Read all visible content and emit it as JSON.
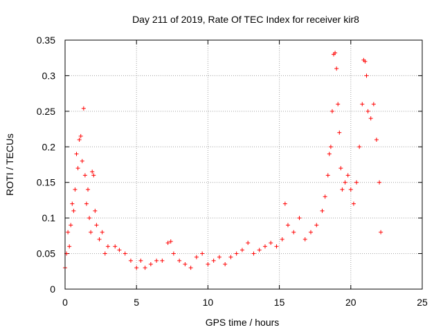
{
  "chart_data": {
    "type": "scatter",
    "title": "Day 211 of 2019, Rate Of TEC Index for receiver kir8",
    "xlabel": "GPS time / hours",
    "ylabel": "ROTI / TECUs",
    "xlim": [
      0,
      25
    ],
    "ylim": [
      0,
      0.35
    ],
    "xticks": [
      0,
      5,
      10,
      15,
      20,
      25
    ],
    "xtick_labels": [
      "0",
      "5",
      "10",
      "15",
      "20",
      "25"
    ],
    "yticks": [
      0,
      0.05,
      0.1,
      0.15,
      0.2,
      0.25,
      0.3,
      0.35
    ],
    "ytick_labels": [
      "0",
      "0.05",
      "0.1",
      "0.15",
      "0.2",
      "0.25",
      "0.3",
      "0.35"
    ],
    "grid": true,
    "marker": "+",
    "color": "#ff0000",
    "series": [
      {
        "name": "ROTI",
        "points": [
          [
            0.0,
            0.03
          ],
          [
            0.1,
            0.05
          ],
          [
            0.2,
            0.08
          ],
          [
            0.3,
            0.06
          ],
          [
            0.4,
            0.09
          ],
          [
            0.5,
            0.12
          ],
          [
            0.6,
            0.11
          ],
          [
            0.7,
            0.14
          ],
          [
            0.8,
            0.19
          ],
          [
            0.9,
            0.17
          ],
          [
            1.0,
            0.21
          ],
          [
            1.1,
            0.215
          ],
          [
            1.2,
            0.18
          ],
          [
            1.3,
            0.254
          ],
          [
            1.4,
            0.16
          ],
          [
            1.5,
            0.12
          ],
          [
            1.6,
            0.14
          ],
          [
            1.7,
            0.1
          ],
          [
            1.8,
            0.08
          ],
          [
            1.9,
            0.165
          ],
          [
            2.0,
            0.16
          ],
          [
            2.1,
            0.11
          ],
          [
            2.2,
            0.09
          ],
          [
            2.4,
            0.07
          ],
          [
            2.6,
            0.08
          ],
          [
            2.8,
            0.05
          ],
          [
            3.0,
            0.06
          ],
          [
            3.5,
            0.06
          ],
          [
            3.8,
            0.055
          ],
          [
            4.2,
            0.05
          ],
          [
            4.6,
            0.04
          ],
          [
            5.0,
            0.03
          ],
          [
            5.3,
            0.04
          ],
          [
            5.6,
            0.03
          ],
          [
            6.0,
            0.035
          ],
          [
            6.4,
            0.04
          ],
          [
            6.8,
            0.04
          ],
          [
            7.2,
            0.065
          ],
          [
            7.4,
            0.067
          ],
          [
            7.6,
            0.05
          ],
          [
            8.0,
            0.04
          ],
          [
            8.4,
            0.035
          ],
          [
            8.8,
            0.03
          ],
          [
            9.2,
            0.045
          ],
          [
            9.6,
            0.05
          ],
          [
            10.0,
            0.035
          ],
          [
            10.4,
            0.04
          ],
          [
            10.8,
            0.045
          ],
          [
            11.2,
            0.035
          ],
          [
            11.6,
            0.045
          ],
          [
            12.0,
            0.05
          ],
          [
            12.4,
            0.055
          ],
          [
            12.8,
            0.065
          ],
          [
            13.2,
            0.05
          ],
          [
            13.6,
            0.055
          ],
          [
            14.0,
            0.06
          ],
          [
            14.4,
            0.065
          ],
          [
            14.8,
            0.06
          ],
          [
            15.2,
            0.07
          ],
          [
            15.4,
            0.12
          ],
          [
            15.6,
            0.09
          ],
          [
            16.0,
            0.08
          ],
          [
            16.4,
            0.1
          ],
          [
            16.8,
            0.07
          ],
          [
            17.2,
            0.08
          ],
          [
            17.6,
            0.09
          ],
          [
            18.0,
            0.11
          ],
          [
            18.2,
            0.13
          ],
          [
            18.4,
            0.16
          ],
          [
            18.5,
            0.19
          ],
          [
            18.6,
            0.2
          ],
          [
            18.7,
            0.25
          ],
          [
            18.8,
            0.33
          ],
          [
            18.9,
            0.332
          ],
          [
            19.0,
            0.31
          ],
          [
            19.1,
            0.26
          ],
          [
            19.2,
            0.22
          ],
          [
            19.3,
            0.17
          ],
          [
            19.4,
            0.14
          ],
          [
            19.6,
            0.15
          ],
          [
            19.8,
            0.16
          ],
          [
            20.0,
            0.14
          ],
          [
            20.2,
            0.12
          ],
          [
            20.4,
            0.15
          ],
          [
            20.6,
            0.2
          ],
          [
            20.8,
            0.26
          ],
          [
            20.9,
            0.322
          ],
          [
            21.0,
            0.32
          ],
          [
            21.1,
            0.3
          ],
          [
            21.2,
            0.25
          ],
          [
            21.4,
            0.24
          ],
          [
            21.6,
            0.26
          ],
          [
            21.8,
            0.21
          ],
          [
            22.0,
            0.15
          ],
          [
            22.1,
            0.08
          ]
        ]
      }
    ]
  }
}
